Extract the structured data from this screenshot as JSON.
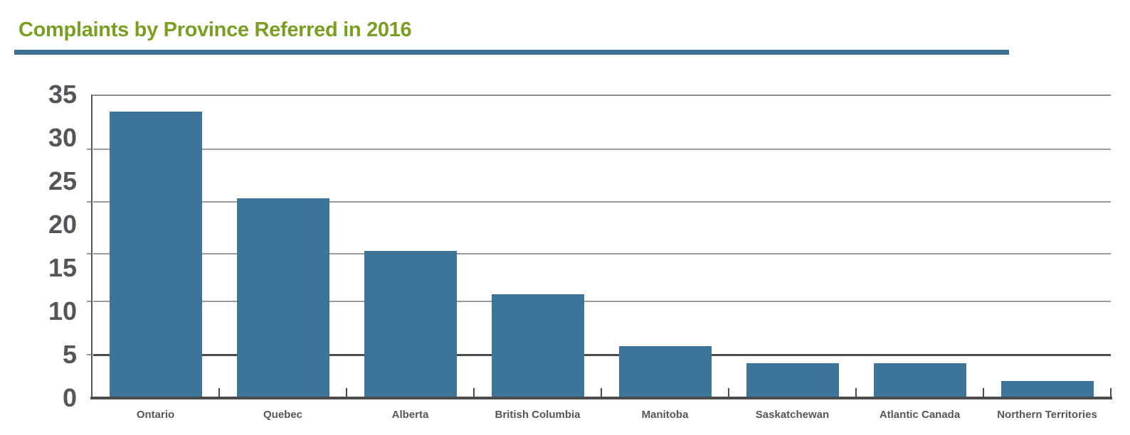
{
  "header": {
    "title": "Complaints by Province Referred in 2016"
  },
  "colors": {
    "title_green": "#7a9e1f",
    "rule_blue": "#3d7095",
    "bar_blue": "#3d7499",
    "text_gray": "#54565b",
    "grid_light": "#9a9a9a",
    "grid_top": "#8c8c8c",
    "axis_dark": "#4b4c4e"
  },
  "chart_data": {
    "type": "bar",
    "title": "Complaints by Province Referred in 2016",
    "categories": [
      "Ontario",
      "Quebec",
      "Alberta",
      "British Columbia",
      "Manitoba",
      "Saskatchewan",
      "Atlantic Canada",
      "Northern Territories"
    ],
    "values": [
      33,
      23,
      17,
      12,
      6,
      4,
      4,
      2
    ],
    "xlabel": "",
    "ylabel": "",
    "ylim": [
      0,
      35
    ],
    "yticks": [
      0,
      5,
      10,
      15,
      20,
      25,
      30,
      35
    ],
    "grid": "horizontal",
    "legend": "none",
    "bar_color": "#3d7499"
  }
}
